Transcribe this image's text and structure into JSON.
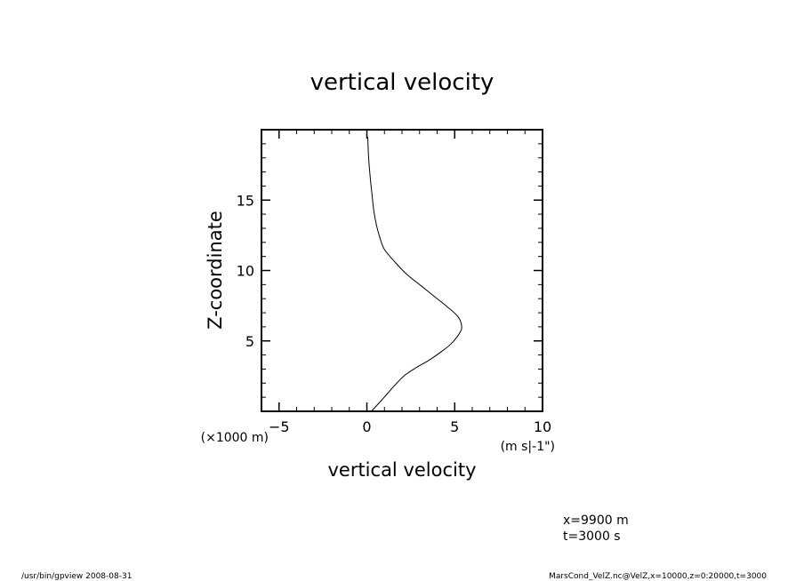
{
  "chart_data": {
    "type": "line",
    "title": "vertical velocity",
    "xlabel": "vertical velocity",
    "ylabel": "Z-coordinate",
    "x_units": "(m s|-1\")",
    "y_units": "(×1000 m)",
    "xlim": [
      -6,
      10
    ],
    "ylim": [
      0,
      20
    ],
    "x_ticks": [
      -5,
      0,
      5,
      10
    ],
    "y_ticks": [
      5,
      10,
      15
    ],
    "series": [
      {
        "x": [
          0.25,
          0.7,
          1.2,
          1.7,
          2.2,
          2.8,
          3.5,
          4.2,
          4.8,
          5.25,
          5.4,
          5.2,
          4.6,
          3.9,
          3.1,
          2.3,
          1.6,
          1.0,
          0.75,
          0.55,
          0.4,
          0.3,
          0.2,
          0.1,
          0.05
        ],
        "y": [
          0,
          0.6,
          1.3,
          2.0,
          2.6,
          3.1,
          3.6,
          4.2,
          4.8,
          5.5,
          6.0,
          6.7,
          7.4,
          8.1,
          8.9,
          9.7,
          10.6,
          11.5,
          12.3,
          13.2,
          14.2,
          15.3,
          16.5,
          18.0,
          19.5
        ]
      }
    ]
  },
  "annotations": {
    "position_label": "x=9900  m",
    "time_label": "t=3000  s"
  },
  "footer": {
    "left": "/usr/bin/gpview   2008-08-31",
    "right": "MarsCond_VelZ.nc@VelZ,x=10000,z=0:20000,t=3000"
  }
}
